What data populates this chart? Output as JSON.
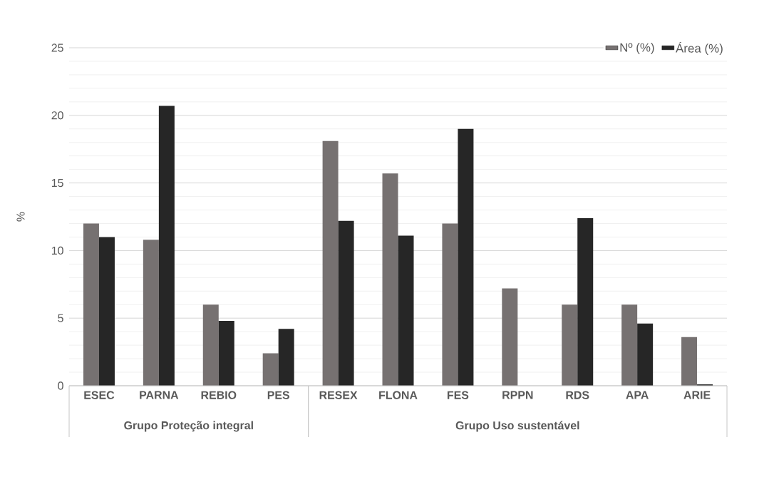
{
  "chart_data": {
    "type": "bar",
    "ylabel": "%",
    "categories": [
      "ESEC",
      "PARNA",
      "REBIO",
      "PES",
      "RESEX",
      "FLONA",
      "FES",
      "RPPN",
      "RDS",
      "APA",
      "ARIE"
    ],
    "series": [
      {
        "name": "Nº (%)",
        "color": "#767171",
        "values": [
          12,
          10.8,
          6,
          2.4,
          18.1,
          15.7,
          12,
          7.2,
          6,
          6,
          3.6
        ]
      },
      {
        "name": "Área (%)",
        "color": "#262626",
        "values": [
          11,
          20.7,
          4.8,
          4.2,
          12.2,
          11.1,
          19,
          null,
          12.4,
          4.6,
          0.1
        ]
      }
    ],
    "ylim": [
      0,
      25
    ],
    "yticks": [
      0,
      5,
      10,
      15,
      20,
      25
    ],
    "grid": "y",
    "legend": "top right",
    "annotations": [
      "Grupo Proteção integral",
      "Grupo Uso sustentável"
    ]
  }
}
